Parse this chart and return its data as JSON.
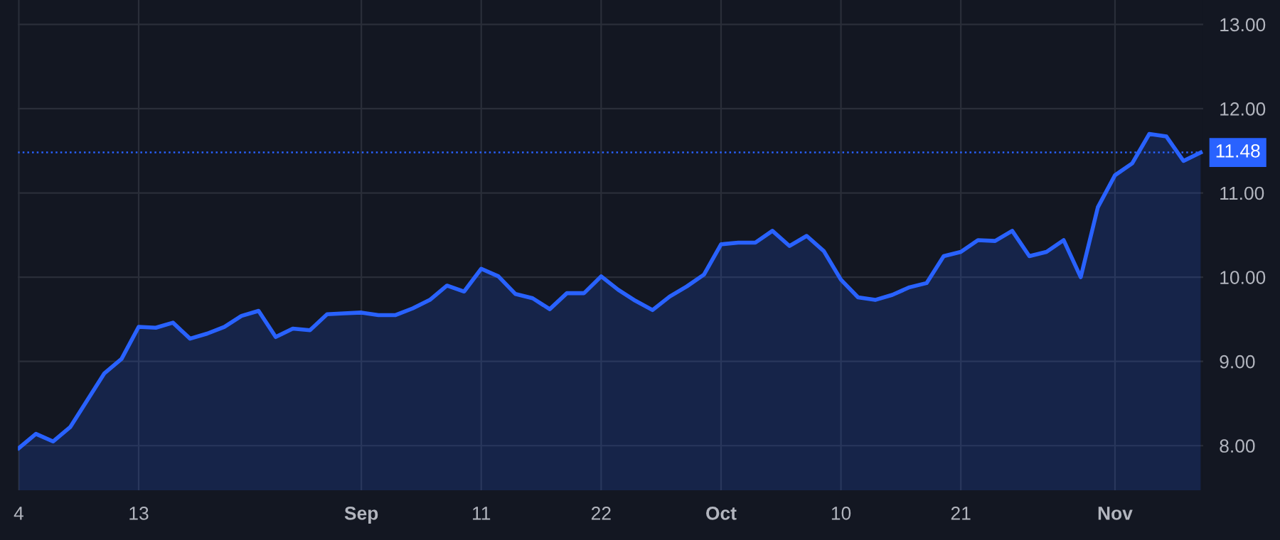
{
  "chart_data": {
    "type": "area",
    "categories": [
      "4",
      null,
      null,
      null,
      null,
      null,
      null,
      "13",
      null,
      null,
      null,
      null,
      null,
      null,
      null,
      null,
      null,
      null,
      null,
      null,
      "Sep",
      null,
      null,
      null,
      null,
      null,
      null,
      "11",
      null,
      null,
      null,
      null,
      null,
      null,
      "22",
      null,
      null,
      null,
      null,
      null,
      null,
      "Oct",
      null,
      null,
      null,
      null,
      null,
      null,
      "10",
      null,
      null,
      null,
      null,
      null,
      null,
      "21",
      null,
      null,
      null,
      null,
      null,
      null,
      null,
      null,
      "Nov",
      null,
      null,
      null,
      null,
      null
    ],
    "series": [
      {
        "color": "#2962ff",
        "values": [
          7.97,
          8.14,
          8.05,
          8.22,
          8.54,
          8.86,
          9.03,
          9.41,
          9.4,
          9.46,
          9.27,
          9.33,
          9.41,
          9.54,
          9.6,
          9.29,
          9.39,
          9.37,
          9.56,
          9.57,
          9.58,
          9.55,
          9.55,
          9.63,
          9.73,
          9.9,
          9.83,
          10.1,
          10.01,
          9.8,
          9.75,
          9.62,
          9.81,
          9.81,
          10.01,
          9.85,
          9.72,
          9.61,
          9.77,
          9.89,
          10.03,
          10.39,
          10.41,
          10.41,
          10.55,
          10.37,
          10.49,
          10.31,
          9.97,
          9.76,
          9.73,
          9.79,
          9.88,
          9.93,
          10.25,
          10.3,
          10.44,
          10.43,
          10.55,
          10.25,
          10.3,
          10.44,
          10.0,
          10.83,
          11.21,
          11.35,
          11.7,
          11.67,
          11.38,
          11.48
        ]
      }
    ],
    "ylim": [
      7.47,
      13.29
    ],
    "yticks": [
      {
        "value": 8,
        "label": "8.00"
      },
      {
        "value": 9,
        "label": "9.00"
      },
      {
        "value": 10,
        "label": "10.00"
      },
      {
        "value": 11,
        "label": "11.00"
      },
      {
        "value": 12,
        "label": "12.00"
      },
      {
        "value": 13,
        "label": "13.00"
      }
    ],
    "ref_lines": [
      {
        "axis": "y",
        "value": 11.48,
        "label": "11.48",
        "color": "#2962ff",
        "line_style": "dotted"
      }
    ],
    "grid": true,
    "legend": false
  }
}
